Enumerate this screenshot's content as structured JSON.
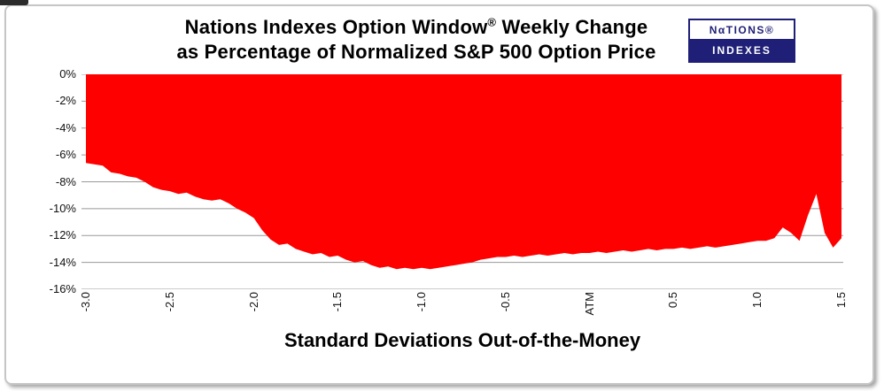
{
  "title": {
    "line1_pre": "Nations Indexes Option Window",
    "registered": "®",
    "line1_post": " Weekly Change",
    "line2": "as Percentage of Normalized S&P 500 Option Price"
  },
  "logo": {
    "top_label": "NαTIONS®",
    "bottom_label": "INDEXES",
    "navy": "#1f1f78"
  },
  "chart_data": {
    "type": "area",
    "title": "Nations Indexes Option Window® Weekly Change as Percentage of Normalized S&P 500 Option Price",
    "xlabel": "Standard Deviations Out-of-the-Money",
    "ylabel": "",
    "xlim": [
      -3.0,
      1.5
    ],
    "ylim": [
      -16,
      0
    ],
    "grid": true,
    "legend": "none",
    "fill_color": "#ff0000",
    "grid_color": "#999999",
    "x": [
      -3.0,
      -2.95,
      -2.9,
      -2.85,
      -2.8,
      -2.75,
      -2.7,
      -2.65,
      -2.6,
      -2.55,
      -2.5,
      -2.45,
      -2.4,
      -2.35,
      -2.3,
      -2.25,
      -2.2,
      -2.15,
      -2.1,
      -2.05,
      -2.0,
      -1.95,
      -1.9,
      -1.85,
      -1.8,
      -1.75,
      -1.7,
      -1.65,
      -1.6,
      -1.55,
      -1.5,
      -1.45,
      -1.4,
      -1.35,
      -1.3,
      -1.25,
      -1.2,
      -1.15,
      -1.1,
      -1.05,
      -1.0,
      -0.95,
      -0.9,
      -0.85,
      -0.8,
      -0.75,
      -0.7,
      -0.65,
      -0.6,
      -0.55,
      -0.5,
      -0.45,
      -0.4,
      -0.35,
      -0.3,
      -0.25,
      -0.2,
      -0.15,
      -0.1,
      -0.05,
      0.0,
      0.05,
      0.1,
      0.15,
      0.2,
      0.25,
      0.3,
      0.35,
      0.4,
      0.45,
      0.5,
      0.55,
      0.6,
      0.65,
      0.7,
      0.75,
      0.8,
      0.85,
      0.9,
      0.95,
      1.0,
      1.05,
      1.1,
      1.15,
      1.2,
      1.25,
      1.3,
      1.35,
      1.4,
      1.45,
      1.5
    ],
    "y": [
      -6.6,
      -6.7,
      -6.8,
      -7.3,
      -7.4,
      -7.6,
      -7.7,
      -8.0,
      -8.4,
      -8.6,
      -8.7,
      -8.9,
      -8.8,
      -9.1,
      -9.3,
      -9.4,
      -9.3,
      -9.6,
      -10.0,
      -10.3,
      -10.7,
      -11.6,
      -12.3,
      -12.7,
      -12.6,
      -13.0,
      -13.2,
      -13.4,
      -13.3,
      -13.6,
      -13.5,
      -13.8,
      -14.0,
      -13.9,
      -14.2,
      -14.4,
      -14.3,
      -14.5,
      -14.4,
      -14.5,
      -14.4,
      -14.5,
      -14.4,
      -14.3,
      -14.2,
      -14.1,
      -14.0,
      -13.8,
      -13.7,
      -13.6,
      -13.6,
      -13.5,
      -13.6,
      -13.5,
      -13.4,
      -13.5,
      -13.4,
      -13.3,
      -13.4,
      -13.3,
      -13.3,
      -13.2,
      -13.3,
      -13.2,
      -13.1,
      -13.2,
      -13.1,
      -13.0,
      -13.1,
      -13.0,
      -13.0,
      -12.9,
      -13.0,
      -12.9,
      -12.8,
      -12.9,
      -12.8,
      -12.7,
      -12.6,
      -12.5,
      -12.4,
      -12.4,
      -12.2,
      -11.4,
      -11.8,
      -12.4,
      -10.5,
      -8.9,
      -11.8,
      -12.9,
      -12.2
    ],
    "xticks": [
      {
        "pos": -3.0,
        "label": "-3.0"
      },
      {
        "pos": -2.5,
        "label": "-2.5"
      },
      {
        "pos": -2.0,
        "label": "-2.0"
      },
      {
        "pos": -1.5,
        "label": "-1.5"
      },
      {
        "pos": -1.0,
        "label": "-1.0"
      },
      {
        "pos": -0.5,
        "label": "-0.5"
      },
      {
        "pos": 0.0,
        "label": "ATM"
      },
      {
        "pos": 0.5,
        "label": "0.5"
      },
      {
        "pos": 1.0,
        "label": "1.0"
      },
      {
        "pos": 1.5,
        "label": "1.5"
      }
    ],
    "yticks": [
      {
        "pos": 0,
        "label": "0%"
      },
      {
        "pos": -2,
        "label": "-2%"
      },
      {
        "pos": -4,
        "label": "-4%"
      },
      {
        "pos": -6,
        "label": "-6%"
      },
      {
        "pos": -8,
        "label": "-8%"
      },
      {
        "pos": -10,
        "label": "-10%"
      },
      {
        "pos": -12,
        "label": "-12%"
      },
      {
        "pos": -14,
        "label": "-14%"
      },
      {
        "pos": -16,
        "label": "-16%"
      }
    ]
  }
}
